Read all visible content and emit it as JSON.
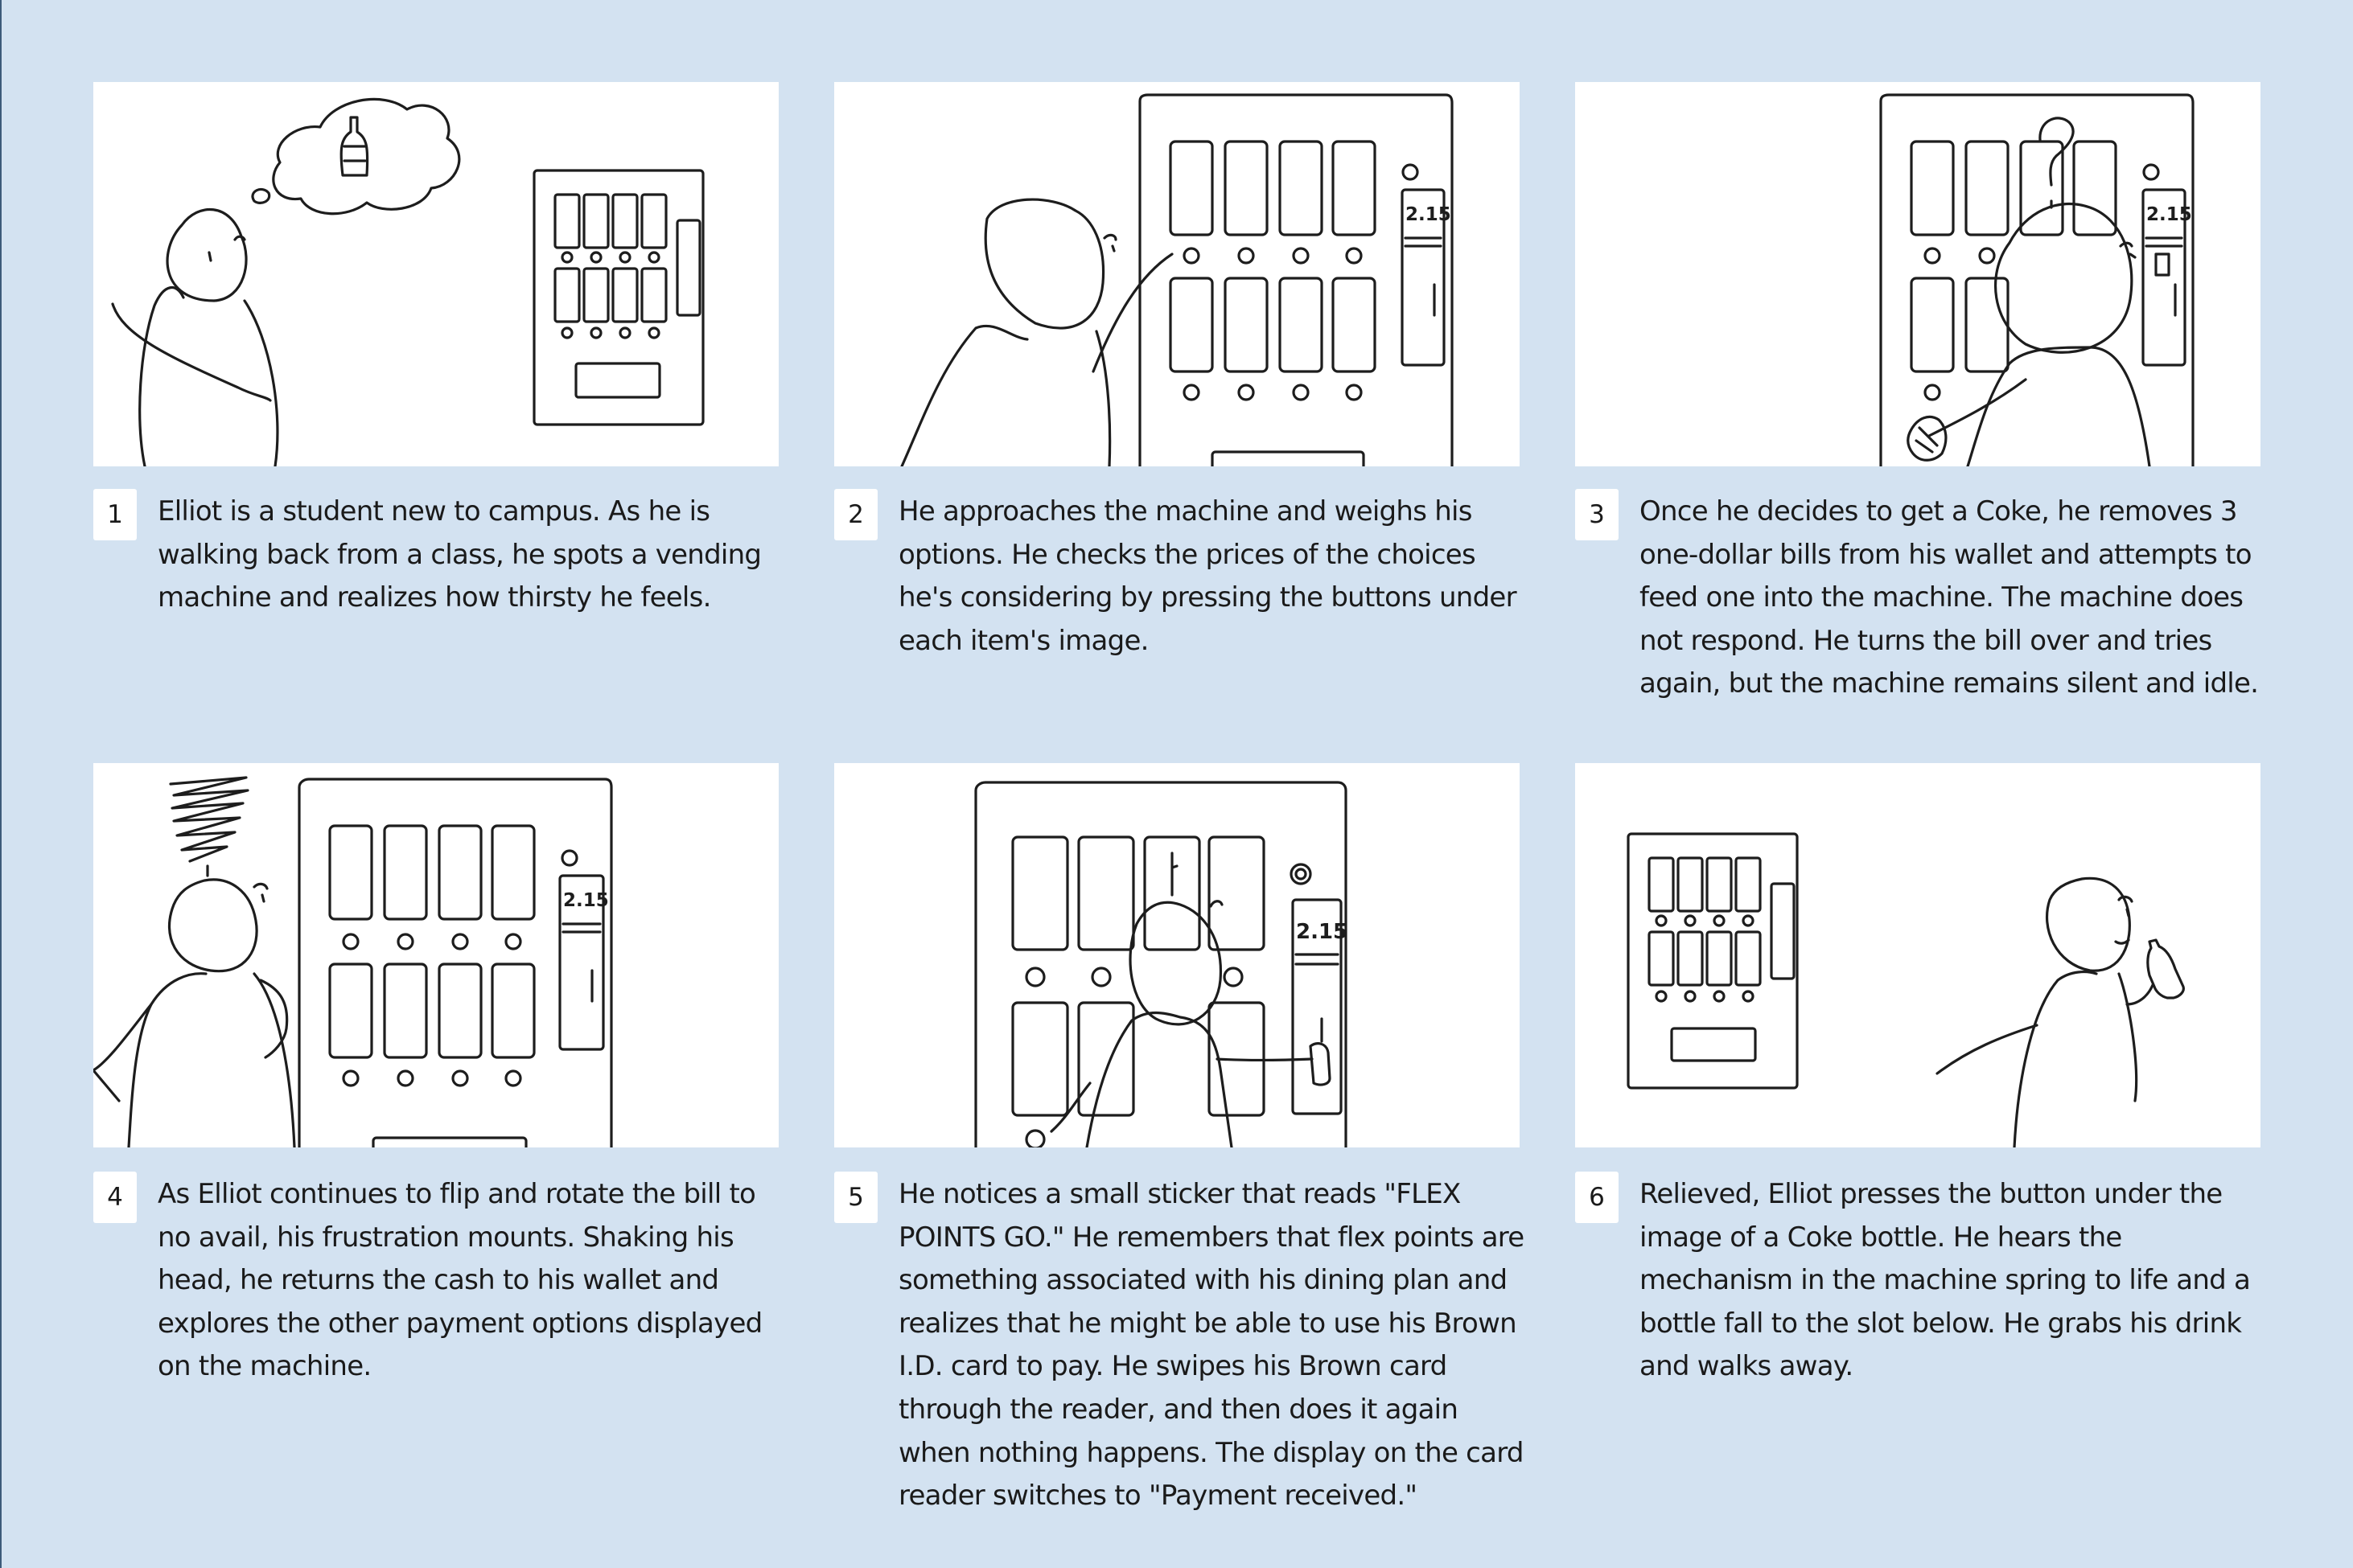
{
  "frames": [
    {
      "number": "1",
      "caption": "Elliot is a student new to campus. As he is walking back from a class, he spots a vending machine and realizes how thirsty he feels."
    },
    {
      "number": "2",
      "caption": "He approaches the machine and weighs his options. He checks the prices of the choices he's considering by pressing the buttons under each item's image."
    },
    {
      "number": "3",
      "caption": "Once he decides to get a Coke, he removes 3 one-dollar bills from his wallet and attempts to feed one into the machine. The machine does not respond. He turns the bill over and tries again, but the machine remains silent and idle."
    },
    {
      "number": "4",
      "caption": "As Elliot continues to flip and rotate the bill to no avail, his frustration mounts. Shaking his head, he returns the cash to his wallet and explores the other payment options displayed on the machine."
    },
    {
      "number": "5",
      "caption": "He notices a small sticker that reads \"FLEX POINTS GO.\" He remembers that flex points are something associated with his dining plan and realizes that he might be able to use his Brown I.D. card to pay. He swipes his Brown card through the reader, and then does it again when nothing happens. The display on the card reader switches to \"Payment received.\""
    },
    {
      "number": "6",
      "caption": "Relieved, Elliot presses the button under the image of a Coke bottle. He hears the mechanism in the machine spring to life and a bottle fall to the slot below. He grabs his drink and walks away."
    }
  ],
  "sketch_text": {
    "price_label": "2.15"
  }
}
